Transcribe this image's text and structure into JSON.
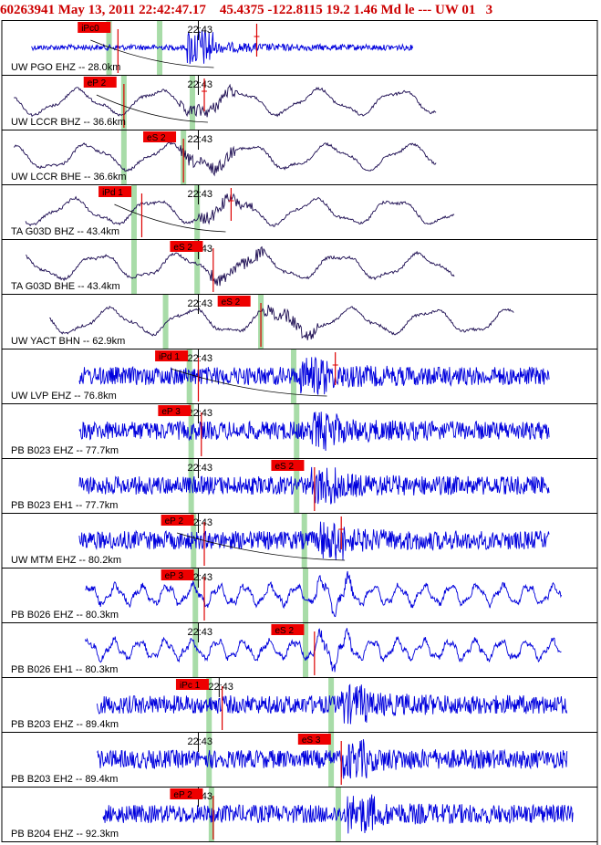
{
  "header": {
    "event_id": "60263941",
    "datetime": "May 13, 2011 22:42:47.17",
    "location": "45.4375 -122.8115 19.2 1.46 Md le --- UW 01",
    "suffix": "3"
  },
  "colors": {
    "header_text": "#cc0000",
    "pick_box": "#ee0000",
    "pick_line": "#dd0000",
    "band": "#a8dca8",
    "trace_blue": "#0000dd",
    "trace_navy": "#1a0a50"
  },
  "chart_data": {
    "type": "seismogram",
    "time_tick_label": "22:43",
    "traces": [
      {
        "label": "UW PGO EHZ -- 28.0km",
        "color": "blue",
        "style": "highfreq",
        "signal_start": 0.05,
        "signal_end": 0.69,
        "onset": 0.31,
        "picks": [
          {
            "text": "iPc0",
            "pos": 0.155,
            "line": 0.195
          }
        ],
        "tick": 0.33,
        "bands": [
          0.18,
          0.265
        ],
        "extra_tick": 0.428,
        "curve": true
      },
      {
        "label": "UW LCCR BHZ -- 36.6km",
        "color": "navy",
        "style": "lowfreq",
        "signal_start": 0.02,
        "signal_end": 0.73,
        "onset": 0.3,
        "picks": [
          {
            "text": "eP 2",
            "pos": 0.165,
            "line": 0.205
          }
        ],
        "tick": 0.33,
        "bands": [
          0.205,
          0.32
        ],
        "extra_tick": 0.34,
        "curve": true
      },
      {
        "label": "UW LCCR BHE -- 36.6km",
        "color": "navy",
        "style": "lowfreq",
        "signal_start": 0.02,
        "signal_end": 0.73,
        "onset": 0.3,
        "picks": [
          {
            "text": "eS 2",
            "pos": 0.265,
            "line": 0.305
          }
        ],
        "tick": 0.33,
        "bands": [
          0.205,
          0.305
        ],
        "extra_tick": null,
        "curve": false
      },
      {
        "label": "TA G03D BHZ -- 43.4km",
        "color": "navy",
        "style": "lowfreq",
        "signal_start": 0.04,
        "signal_end": 0.76,
        "onset": 0.33,
        "picks": [
          {
            "text": "iPd 1",
            "pos": 0.19,
            "line": 0.235
          }
        ],
        "tick": 0.33,
        "bands": [
          0.222,
          0.328
        ],
        "extra_tick": 0.385,
        "curve": true
      },
      {
        "label": "TA G03D BHE -- 43.4km",
        "color": "navy",
        "style": "lowfreq",
        "signal_start": 0.04,
        "signal_end": 0.76,
        "onset": 0.35,
        "picks": [
          {
            "text": "eS 2",
            "pos": 0.31,
            "line": 0.355
          }
        ],
        "tick": 0.33,
        "bands": [
          0.222,
          0.328
        ],
        "extra_tick": null,
        "curve": false
      },
      {
        "label": "UW YACT BHN -- 62.9km",
        "color": "navy",
        "style": "lowfreq",
        "signal_start": 0.08,
        "signal_end": 0.86,
        "onset": 0.44,
        "picks": [
          {
            "text": "eS 2",
            "pos": 0.39,
            "line": 0.435
          }
        ],
        "tick": 0.33,
        "bands": [
          0.275,
          0.435
        ],
        "extra_tick": null,
        "curve": false
      },
      {
        "label": "UW LVP EHZ -- 76.8km",
        "color": "blue",
        "style": "highfreq",
        "signal_start": 0.13,
        "signal_end": 0.92,
        "onset": 0.5,
        "picks": [
          {
            "text": "iPd 1",
            "pos": 0.285,
            "line": 0.33
          }
        ],
        "tick": 0.33,
        "bands": [
          0.315,
          0.49
        ],
        "extra_tick": 0.56,
        "curve": true
      },
      {
        "label": "PB B023 EHZ -- 77.7km",
        "color": "blue",
        "style": "highfreq",
        "signal_start": 0.13,
        "signal_end": 0.92,
        "onset": 0.52,
        "picks": [
          {
            "text": "eP 3",
            "pos": 0.29,
            "line": 0.335
          }
        ],
        "tick": 0.33,
        "bands": [
          0.318,
          0.495
        ],
        "extra_tick": null,
        "curve": false
      },
      {
        "label": "PB B023 EH1 -- 77.7km",
        "color": "blue",
        "style": "highfreq",
        "signal_start": 0.13,
        "signal_end": 0.92,
        "onset": 0.52,
        "picks": [
          {
            "text": "eS 2",
            "pos": 0.48,
            "line": 0.525
          }
        ],
        "tick": 0.33,
        "bands": [
          0.318,
          0.495
        ],
        "extra_tick": null,
        "curve": false
      },
      {
        "label": "UW MTM EHZ -- 80.2km",
        "color": "blue",
        "style": "highfreq",
        "signal_start": 0.13,
        "signal_end": 0.92,
        "onset": 0.53,
        "picks": [
          {
            "text": "eP 2",
            "pos": 0.295,
            "line": 0.34
          }
        ],
        "tick": 0.33,
        "bands": [
          0.322,
          0.508
        ],
        "extra_tick": 0.57,
        "curve": true
      },
      {
        "label": "PB B026 EHZ -- 80.3km",
        "color": "blue",
        "style": "midfreq",
        "signal_start": 0.14,
        "signal_end": 0.94,
        "onset": 0.53,
        "picks": [
          {
            "text": "eP 3",
            "pos": 0.295,
            "line": 0.34
          }
        ],
        "tick": 0.33,
        "bands": [
          0.325,
          0.51
        ],
        "extra_tick": null,
        "curve": false
      },
      {
        "label": "PB B026 EH1 -- 80.3km",
        "color": "blue",
        "style": "midfreq",
        "signal_start": 0.14,
        "signal_end": 0.94,
        "onset": 0.53,
        "picks": [
          {
            "text": "eS 2",
            "pos": 0.48,
            "line": 0.525
          }
        ],
        "tick": 0.33,
        "bands": [
          0.325,
          0.51
        ],
        "extra_tick": null,
        "curve": false
      },
      {
        "label": "PB B203 EHZ -- 89.4km",
        "color": "blue",
        "style": "highfreq",
        "signal_start": 0.16,
        "signal_end": 0.95,
        "onset": 0.57,
        "picks": [
          {
            "text": "iPc 1",
            "pos": 0.32,
            "line": 0.37
          }
        ],
        "tick": 0.365,
        "bands": [
          0.348,
          0.553
        ],
        "extra_tick": null,
        "curve": false
      },
      {
        "label": "PB B203 EH2 -- 89.4km",
        "color": "blue",
        "style": "highfreq",
        "signal_start": 0.16,
        "signal_end": 0.95,
        "onset": 0.57,
        "picks": [
          {
            "text": "eS 3",
            "pos": 0.525,
            "line": 0.57
          }
        ],
        "tick": 0.33,
        "bands": [
          0.348,
          0.553
        ],
        "extra_tick": null,
        "curve": false
      },
      {
        "label": "PB B204 EHZ -- 92.3km",
        "color": "blue",
        "style": "highfreq",
        "signal_start": 0.17,
        "signal_end": 0.96,
        "onset": 0.58,
        "picks": [
          {
            "text": "eP 2",
            "pos": 0.31,
            "line": 0.355
          }
        ],
        "tick": 0.33,
        "bands": [
          0.352,
          0.565
        ],
        "extra_tick": null,
        "curve": false
      }
    ]
  }
}
